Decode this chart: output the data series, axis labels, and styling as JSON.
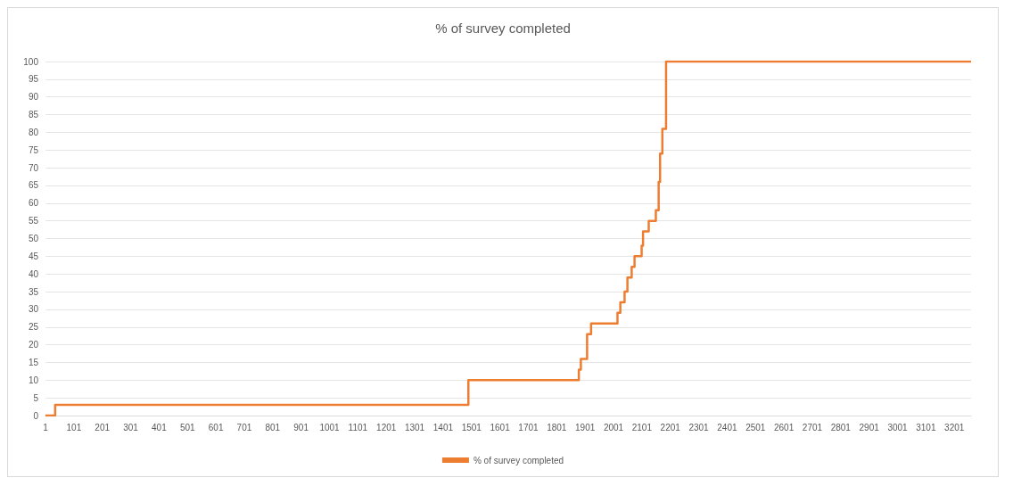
{
  "chart_data": {
    "type": "step",
    "title": "% of survey completed",
    "x": [
      1,
      35,
      1490,
      1879,
      1886,
      1908,
      1922,
      2015,
      2025,
      2040,
      2050,
      2065,
      2075,
      2100,
      2105,
      2125,
      2150,
      2160,
      2165,
      2173,
      2186,
      3260
    ],
    "series": [
      {
        "name": "% of survey completed",
        "color": "#ed7d31",
        "values": [
          0,
          3,
          10,
          13,
          16,
          23,
          26,
          29,
          32,
          35,
          39,
          42,
          45,
          48,
          52,
          55,
          58,
          66,
          74,
          81,
          100,
          100
        ]
      }
    ],
    "xlim": [
      1,
      3260
    ],
    "xticks": [
      1,
      101,
      201,
      301,
      401,
      501,
      601,
      701,
      801,
      901,
      1001,
      1101,
      1201,
      1301,
      1401,
      1501,
      1601,
      1701,
      1801,
      1901,
      2001,
      2101,
      2201,
      2301,
      2401,
      2501,
      2601,
      2701,
      2801,
      2901,
      3001,
      3101,
      3201
    ],
    "ylim": [
      0,
      100
    ],
    "yticks": [
      0,
      5,
      10,
      15,
      20,
      25,
      30,
      35,
      40,
      45,
      50,
      55,
      60,
      65,
      70,
      75,
      80,
      85,
      90,
      95,
      100
    ],
    "grid": "y",
    "legend": "bottom",
    "marker": "none",
    "line_style": "solid"
  }
}
